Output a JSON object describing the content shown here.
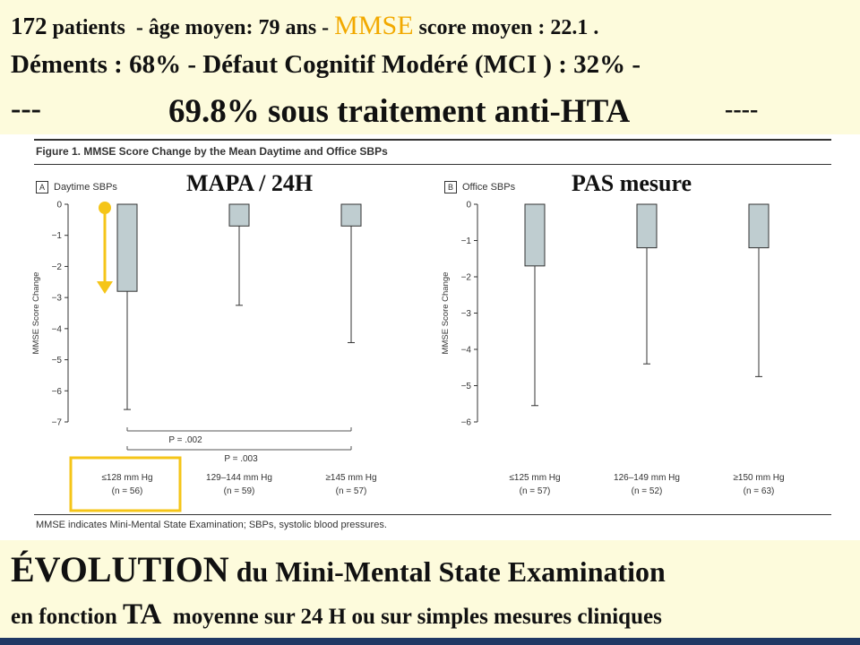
{
  "header": {
    "line1": {
      "count": "172",
      "patients": "patients",
      "age": "- âge moyen: 79 ans -",
      "mmse": "MMSE",
      "score": "score moyen : 22.1 ."
    },
    "line2": "Déments : 68% - Défaut Cognitif Modéré (MCI ) : 32% -",
    "line3": {
      "left": "---",
      "center": "69.8% sous traitement anti-HTA",
      "right": "----"
    }
  },
  "figure": {
    "title": "Figure 1. MMSE Score Change by the Mean Daytime and Office SBPs",
    "footnote": "MMSE indicates Mini-Mental State Examination; SBPs, systolic blood pressures.",
    "overlay_left": "MAPA / 24H",
    "overlay_right": "PAS mesure"
  },
  "footer": {
    "line1_big": "ÉVOLUTION",
    "line1_rest": "du Mini-Mental State Examination",
    "line2_pre": "en fonction",
    "line2_big": "TA",
    "line2_rest": "moyenne sur 24 H ou sur simples mesures cliniques"
  },
  "colors": {
    "banner_bg": "#fdfbdc",
    "bar_fill": "#bfcdd0",
    "highlight": "#f5c518",
    "mmse_text": "#f2a900",
    "bottom_edge": "#1f3864"
  },
  "chart_data": [
    {
      "type": "bar",
      "panel": "A",
      "title": "Daytime SBPs",
      "ylabel": "MMSE Score Change",
      "ylim": [
        -7,
        0
      ],
      "yticks": [
        "0",
        "−1",
        "−2",
        "−3",
        "−4",
        "−5",
        "−6",
        "−7"
      ],
      "categories": [
        "≤128 mm Hg",
        "129–144 mm Hg",
        "≥145 mm Hg"
      ],
      "n_labels": [
        "(n = 56)",
        "(n = 59)",
        "(n = 57)"
      ],
      "values": [
        -2.8,
        -0.7,
        -0.7
      ],
      "error_low": [
        -6.6,
        -3.25,
        -4.45
      ],
      "pvalues": [
        "P = .002",
        "P = .003"
      ]
    },
    {
      "type": "bar",
      "panel": "B",
      "title": "Office SBPs",
      "ylabel": "MMSE Score Change",
      "ylim": [
        -6,
        0
      ],
      "yticks": [
        "0",
        "−1",
        "−2",
        "−3",
        "−4",
        "−5",
        "−6"
      ],
      "categories": [
        "≤125 mm Hg",
        "126–149 mm Hg",
        "≥150 mm Hg"
      ],
      "n_labels": [
        "(n = 57)",
        "(n = 52)",
        "(n = 63)"
      ],
      "values": [
        -1.7,
        -1.2,
        -1.2
      ],
      "error_low": [
        -5.55,
        -4.4,
        -4.75
      ]
    }
  ]
}
